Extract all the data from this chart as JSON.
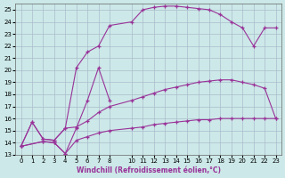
{
  "xlabel": "Windchill (Refroidissement éolien,°C)",
  "ylabel": "",
  "xlim": [
    -0.5,
    23.5
  ],
  "ylim": [
    13,
    25.5
  ],
  "yticks": [
    13,
    14,
    15,
    16,
    17,
    18,
    19,
    20,
    21,
    22,
    23,
    24,
    25
  ],
  "xticks": [
    0,
    1,
    2,
    3,
    4,
    5,
    6,
    7,
    8,
    10,
    11,
    12,
    13,
    14,
    15,
    16,
    17,
    18,
    19,
    20,
    21,
    22,
    23
  ],
  "bg_color": "#cce8e8",
  "grid_color": "#aabccc",
  "line_color": "#993399",
  "curves": [
    {
      "x": [
        0,
        1,
        2,
        3,
        4,
        5,
        6,
        7,
        8,
        10,
        11,
        12,
        13,
        14,
        15,
        16,
        17,
        18,
        19,
        20,
        21,
        22,
        23
      ],
      "y": [
        13.7,
        15.7,
        14.3,
        14.2,
        15.2,
        20.2,
        21.5,
        22.0,
        23.7,
        24.0,
        25.0,
        25.2,
        25.3,
        25.3,
        25.2,
        25.1,
        25.0,
        24.6,
        24.0,
        23.5,
        22.0,
        23.5,
        23.5
      ]
    },
    {
      "x": [
        0,
        1,
        2,
        3,
        4,
        5,
        6,
        7,
        8,
        10,
        11,
        12,
        13,
        14,
        15,
        16,
        17,
        18,
        19,
        20,
        21,
        22,
        23
      ],
      "y": [
        13.7,
        15.7,
        14.3,
        14.2,
        15.2,
        15.3,
        15.8,
        16.5,
        17.0,
        17.5,
        17.8,
        18.1,
        18.4,
        18.6,
        18.8,
        19.0,
        19.1,
        19.2,
        19.2,
        19.0,
        18.8,
        18.5,
        16.0
      ]
    },
    {
      "x": [
        0,
        2,
        3,
        4,
        5,
        6,
        7,
        8,
        10,
        11,
        12,
        13,
        14,
        15,
        16,
        17,
        18,
        19,
        20,
        21,
        22,
        23
      ],
      "y": [
        13.7,
        14.1,
        14.0,
        13.1,
        14.2,
        14.5,
        14.8,
        15.0,
        15.2,
        15.3,
        15.5,
        15.6,
        15.7,
        15.8,
        15.9,
        15.9,
        16.0,
        16.0,
        16.0,
        16.0,
        16.0,
        16.0
      ]
    },
    {
      "x": [
        0,
        2,
        3,
        4,
        5,
        6,
        7,
        8
      ],
      "y": [
        13.7,
        14.1,
        14.0,
        13.1,
        15.2,
        17.5,
        20.2,
        17.5
      ]
    }
  ]
}
